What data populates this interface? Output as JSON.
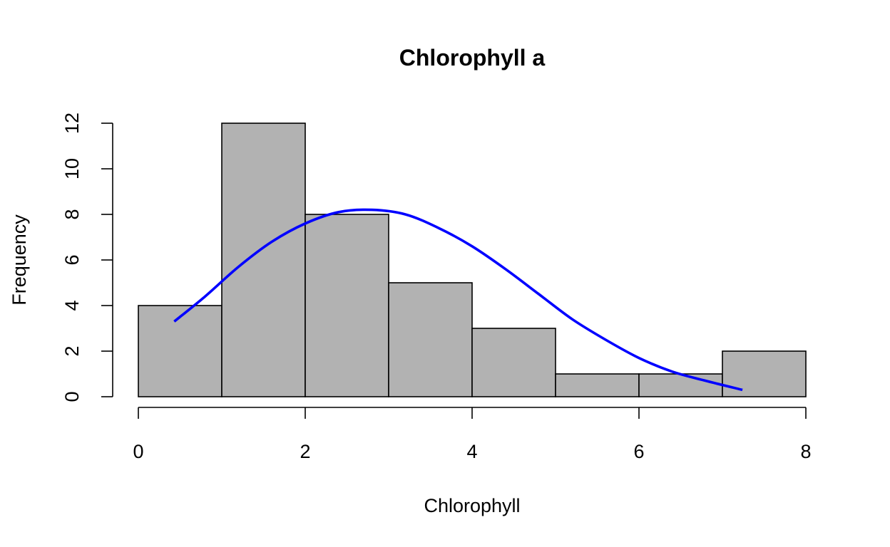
{
  "chart_data": {
    "type": "bar",
    "title": "Chlorophyll a",
    "xlabel": "Chlorophyll",
    "ylabel": "Frequency",
    "bins": [
      {
        "start": 0,
        "end": 1,
        "count": 4
      },
      {
        "start": 1,
        "end": 2,
        "count": 12
      },
      {
        "start": 2,
        "end": 3,
        "count": 8
      },
      {
        "start": 3,
        "end": 4,
        "count": 5
      },
      {
        "start": 4,
        "end": 5,
        "count": 3
      },
      {
        "start": 5,
        "end": 6,
        "count": 1
      },
      {
        "start": 6,
        "end": 7,
        "count": 1
      },
      {
        "start": 7,
        "end": 8,
        "count": 2
      }
    ],
    "x_ticks": [
      "0",
      "2",
      "4",
      "6",
      "8"
    ],
    "y_ticks": [
      "0",
      "2",
      "4",
      "6",
      "8",
      "10",
      "12"
    ],
    "xlim": [
      0,
      8
    ],
    "ylim": [
      0,
      12
    ],
    "normal_curve": {
      "x": [
        0.43,
        0.8,
        1.2,
        1.6,
        2.0,
        2.4,
        2.8,
        3.2,
        3.6,
        4.0,
        4.4,
        4.8,
        5.2,
        5.6,
        6.0,
        6.4,
        6.8,
        7.24
      ],
      "y": [
        3.3,
        4.4,
        5.7,
        6.8,
        7.6,
        8.1,
        8.2,
        8.0,
        7.4,
        6.6,
        5.6,
        4.5,
        3.4,
        2.5,
        1.7,
        1.1,
        0.7,
        0.3
      ],
      "color": "#0000ff"
    },
    "bar_color": "#b2b2b2",
    "grid": false
  }
}
